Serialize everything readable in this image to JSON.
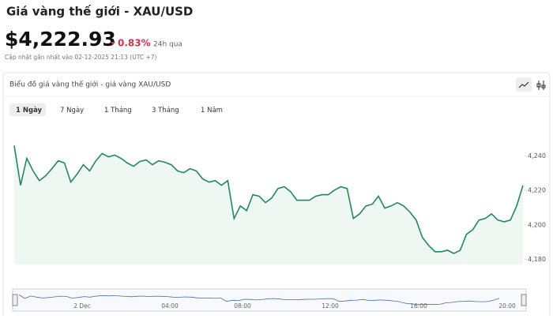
{
  "header": {
    "title": "Giá vàng thế giới - XAU/USD",
    "price": "$4,222.93",
    "change": "0.83%",
    "change_period": "24h qua",
    "updated": "Cập nhật gần nhất vào 02-12-2025 21:13 (UTC +7)"
  },
  "card": {
    "title": "Biểu đồ giá vàng thế giới - giá vàng XAU/USD",
    "tabs": [
      "1 Ngày",
      "7 Ngày",
      "1 Tháng",
      "3 Tháng",
      "1 Năm"
    ]
  },
  "navigator": {
    "labels": [
      "2 Dec",
      "04:00",
      "08:00",
      "12:00",
      "16:00",
      "20:00"
    ]
  },
  "chart_data": {
    "type": "line",
    "color": "#1f8a5e",
    "fill": "#eef7f2",
    "values": [
      4246.0,
      4223.0,
      4238.6,
      4231.3,
      4225.7,
      4228.5,
      4232.6,
      4237.2,
      4235.9,
      4224.8,
      4229.4,
      4234.9,
      4231.3,
      4237.2,
      4241.4,
      4239.5,
      4240.5,
      4238.6,
      4235.9,
      4234.0,
      4236.8,
      4237.7,
      4234.9,
      4237.2,
      4236.3,
      4234.9,
      4231.3,
      4230.3,
      4232.6,
      4231.3,
      4226.7,
      4224.8,
      4225.7,
      4223.0,
      4225.7,
      4203.7,
      4211.0,
      4208.3,
      4217.5,
      4216.6,
      4212.9,
      4215.6,
      4221.1,
      4222.1,
      4219.3,
      4214.3,
      4214.3,
      4214.3,
      4216.6,
      4217.5,
      4217.5,
      4220.2,
      4222.1,
      4221.1,
      4203.7,
      4206.4,
      4211.0,
      4212.0,
      4216.6,
      4209.7,
      4211.0,
      4212.9,
      4211.0,
      4207.4,
      4202.8,
      4192.6,
      4188.0,
      4184.4,
      4184.4,
      4185.3,
      4183.4,
      4185.3,
      4194.5,
      4197.2,
      4202.8,
      4203.7,
      4206.4,
      4202.8,
      4201.8,
      4202.8,
      4211.0,
      4222.9
    ],
    "ylim": [
      4177,
      4248
    ],
    "yticks": [
      {
        "value": 4180,
        "label": "4,180"
      },
      {
        "value": 4200,
        "label": "4,200"
      },
      {
        "value": 4220,
        "label": "4,220"
      },
      {
        "value": 4240,
        "label": "4,240"
      }
    ]
  }
}
